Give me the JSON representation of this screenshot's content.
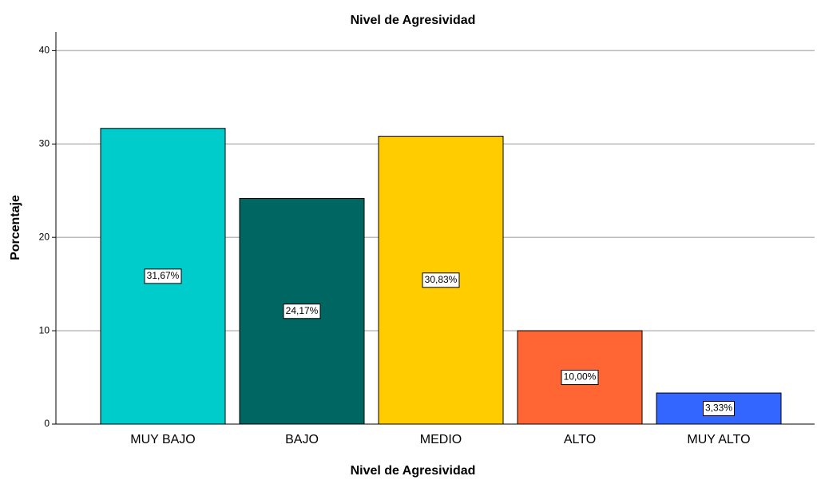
{
  "chart_data": {
    "type": "bar",
    "title": "Nivel de Agresividad",
    "x_label": "Nivel de Agresividad",
    "y_label": "Porcentaje",
    "categories": [
      "MUY BAJO",
      "BAJO",
      "MEDIO",
      "ALTO",
      "MUY ALTO"
    ],
    "values": [
      31.67,
      24.17,
      30.83,
      10.0,
      3.33
    ],
    "value_labels": [
      "31,67%",
      "24,17%",
      "30,83%",
      "10,00%",
      "3,33%"
    ],
    "colors": [
      "#00cccc",
      "#006661",
      "#ffcc00",
      "#ff6633",
      "#3366ff"
    ],
    "ylim": [
      0,
      42
    ],
    "yticks": [
      0,
      10,
      20,
      30,
      40
    ],
    "grid": true
  }
}
